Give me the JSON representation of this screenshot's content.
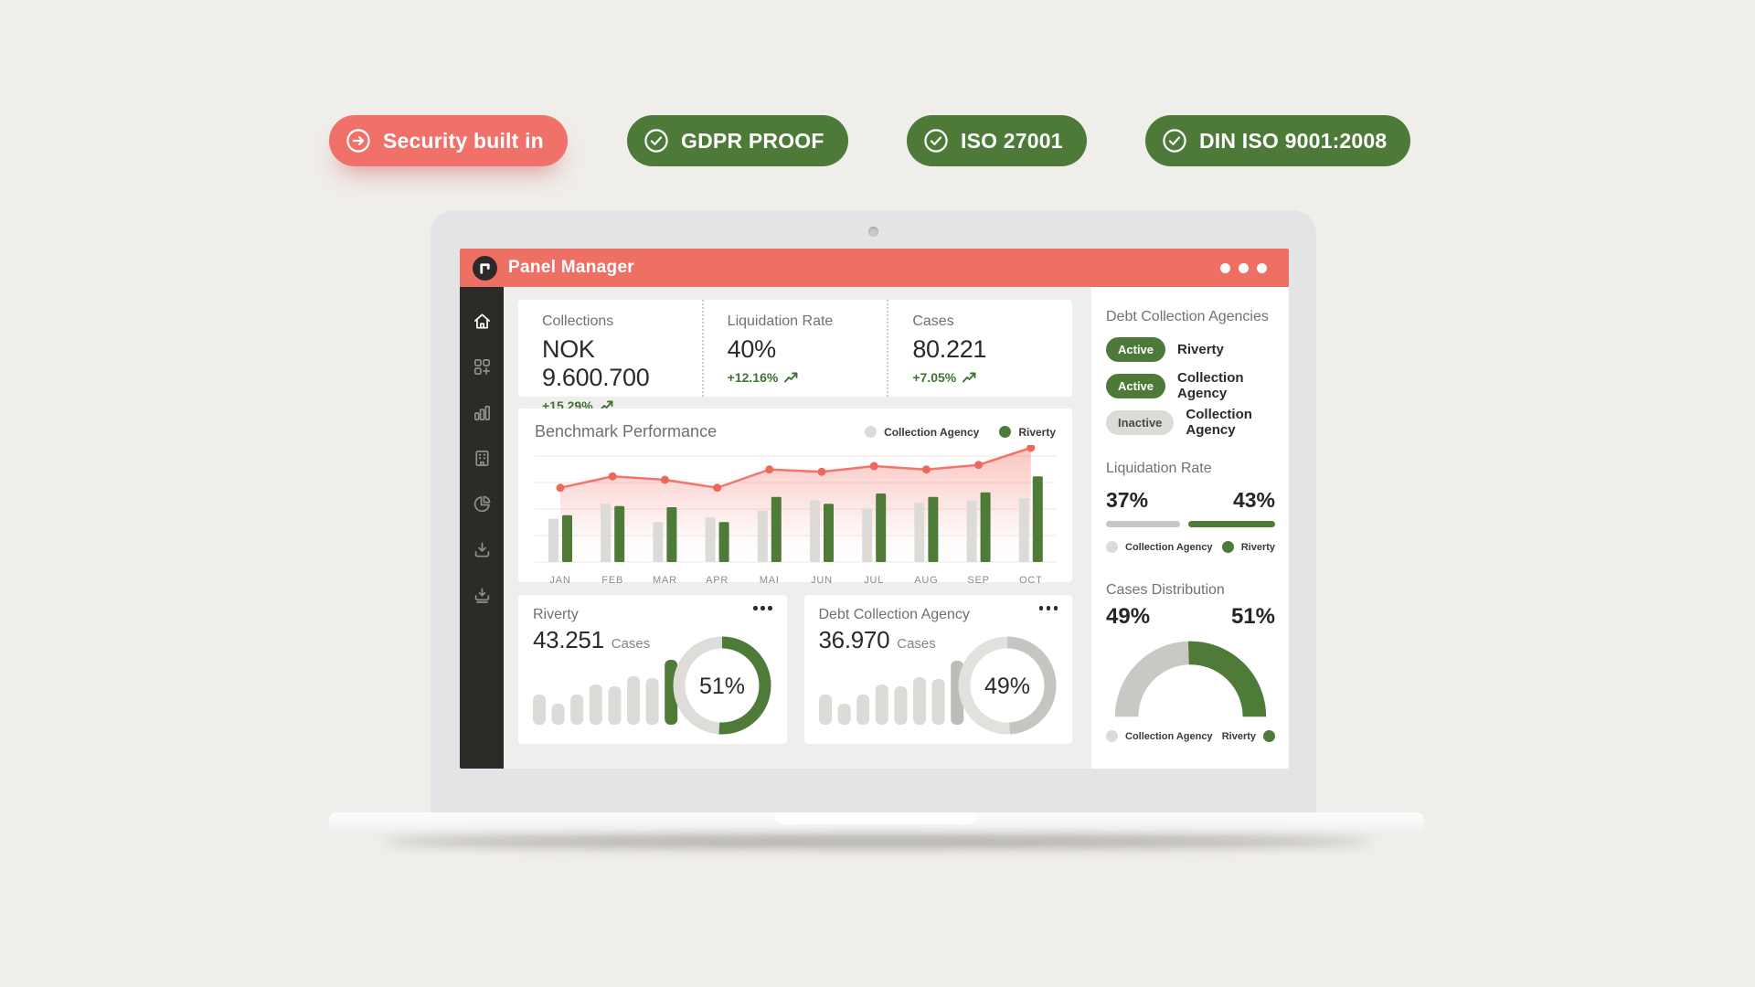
{
  "badges": [
    {
      "label": "Security built in",
      "icon": "arrow-right-circle-icon",
      "variant": "red"
    },
    {
      "label": "GDPR PROOF",
      "icon": "check-circle-icon",
      "variant": "green"
    },
    {
      "label": "ISO 27001",
      "icon": "check-circle-icon",
      "variant": "green"
    },
    {
      "label": "DIN ISO 9001:2008",
      "icon": "check-circle-icon",
      "variant": "green"
    }
  ],
  "window": {
    "title": "Panel Manager"
  },
  "sidebar": {
    "items": [
      {
        "icon": "home-icon",
        "active": true
      },
      {
        "icon": "apps-plus-icon",
        "active": false
      },
      {
        "icon": "bar-chart-icon",
        "active": false
      },
      {
        "icon": "building-icon",
        "active": false
      },
      {
        "icon": "pie-chart-icon",
        "active": false
      },
      {
        "icon": "download-icon",
        "active": false
      },
      {
        "icon": "download-stack-icon",
        "active": false
      }
    ]
  },
  "stats": [
    {
      "label": "Collections",
      "value": "NOK 9.600.700",
      "delta": "+15.29%"
    },
    {
      "label": "Liquidation Rate",
      "value": "40%",
      "delta": "+12.16%"
    },
    {
      "label": "Cases",
      "value": "80.221",
      "delta": "+7.05%"
    }
  ],
  "benchmark": {
    "title": "Benchmark Performance",
    "legend": [
      {
        "label": "Collection Agency",
        "color": "#dcdbd8"
      },
      {
        "label": "Riverty",
        "color": "#4e7b38"
      }
    ]
  },
  "agency_cards": [
    {
      "title": "Riverty",
      "value": "43.251",
      "unit": "Cases"
    },
    {
      "title": "Debt Collection Agency",
      "value": "36.970",
      "unit": "Cases"
    }
  ],
  "right_panel": {
    "agencies_title": "Debt Collection Agencies",
    "agencies": [
      {
        "status": "Active",
        "name": "Riverty",
        "active": true
      },
      {
        "status": "Active",
        "name": "Collection Agency",
        "active": true
      },
      {
        "status": "Inactive",
        "name": "Collection Agency",
        "active": false
      }
    ],
    "liquidation": {
      "title": "Liquidation Rate",
      "left_value": "37%",
      "right_value": "43%",
      "legend": [
        {
          "label": "Collection Agency",
          "color": "#dcdbd8"
        },
        {
          "label": "Riverty",
          "color": "#4e7b38"
        }
      ]
    },
    "cases": {
      "title": "Cases Distribution",
      "left_value": "49%",
      "right_value": "51%",
      "legend": [
        {
          "label": "Collection Agency",
          "color": "#dcdbd8"
        },
        {
          "label": "Riverty",
          "color": "#4e7b38"
        }
      ]
    }
  },
  "colors": {
    "accent_red": "#ee6f64",
    "accent_green": "#4e7b38",
    "line_red": "#f3756a",
    "bar_gray": "#dcdbd8",
    "sidebar_bg": "#2d2b28"
  },
  "chart_data": [
    {
      "id": "benchmark",
      "type": "bar",
      "title": "Benchmark Performance",
      "categories": [
        "JAN",
        "FEB",
        "MAR",
        "APR",
        "MAI",
        "JUN",
        "JUL",
        "AUG",
        "SEP",
        "OCT"
      ],
      "series": [
        {
          "name": "Collection Agency",
          "color": "#dcdbd8",
          "values": [
            38,
            51,
            35,
            39,
            45,
            54,
            47,
            52,
            54,
            56
          ]
        },
        {
          "name": "Riverty",
          "color": "#4e7b38",
          "values": [
            41,
            49,
            48,
            35,
            57,
            51,
            60,
            57,
            61,
            75
          ]
        }
      ],
      "line_series": {
        "name": "Benchmark trend",
        "color": "#f3756a",
        "values": [
          65,
          75,
          72,
          65,
          81,
          79,
          84,
          81,
          85,
          100
        ]
      },
      "ylim": [
        0,
        100
      ],
      "grid": true,
      "legend_position": "top-right"
    },
    {
      "id": "riverty_cases",
      "type": "bar",
      "title": "Riverty monthly cases (sparkline)",
      "values": [
        33,
        23,
        33,
        44,
        42,
        53,
        51,
        71
      ],
      "bar_color": "#dcdbd8",
      "highlight_last_color": "#4e7b38"
    },
    {
      "id": "agency_cases",
      "type": "bar",
      "title": "Debt Collection Agency monthly cases (sparkline)",
      "values": [
        33,
        23,
        33,
        44,
        42,
        52,
        50,
        70
      ],
      "bar_color": "#dcdbd8",
      "highlight_last_color": "#bdbcb9"
    },
    {
      "id": "riverty_donut",
      "type": "pie",
      "title": "Riverty rate",
      "value": 51,
      "arc_color": "#4e7b38",
      "track_color": "#deddda"
    },
    {
      "id": "agency_donut",
      "type": "pie",
      "title": "Debt Collection Agency rate",
      "value": 49,
      "arc_color": "#c6c5c2",
      "track_color": "#e2e1de"
    },
    {
      "id": "liquidation_rate",
      "type": "bar",
      "title": "Liquidation Rate",
      "categories": [
        "Collection Agency",
        "Riverty"
      ],
      "values": [
        37,
        43
      ],
      "colors": [
        "#c8c7c4",
        "#4e7b38"
      ]
    },
    {
      "id": "cases_distribution",
      "type": "pie",
      "title": "Cases Distribution",
      "categories": [
        "Collection Agency",
        "Riverty"
      ],
      "values": [
        49,
        51
      ],
      "colors": [
        "#c9c8c5",
        "#4e7b38"
      ],
      "style": "half-gauge"
    }
  ]
}
